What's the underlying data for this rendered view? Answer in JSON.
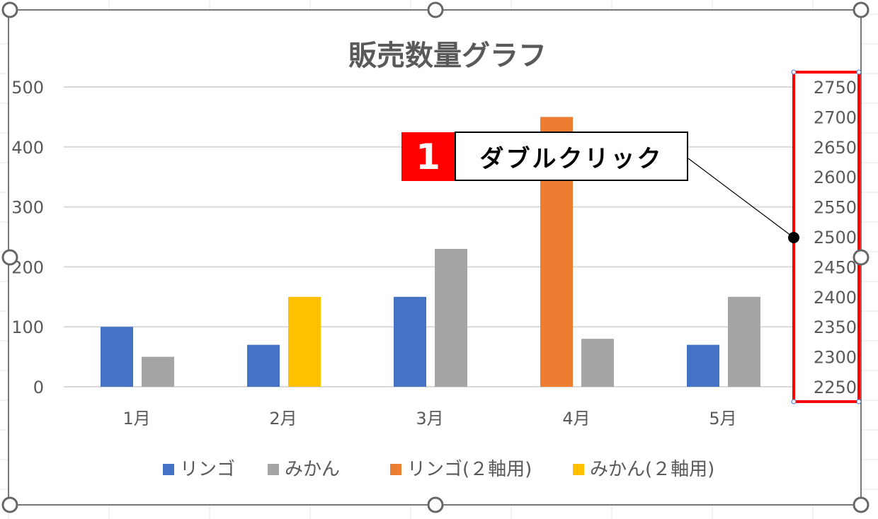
{
  "chart_data": {
    "type": "bar",
    "title": "販売数量グラフ",
    "categories": [
      "1月",
      "2月",
      "3月",
      "4月",
      "5月"
    ],
    "series": [
      {
        "name": "リンゴ",
        "axis": "primary",
        "slot": 0,
        "color": "#4472c4",
        "values": [
          100,
          70,
          150,
          null,
          70
        ]
      },
      {
        "name": "みかん",
        "axis": "primary",
        "slot": 1,
        "color": "#a5a5a5",
        "values": [
          50,
          null,
          230,
          80,
          150
        ]
      },
      {
        "name": "リンゴ(２軸用)",
        "axis": "secondary",
        "slot": 0,
        "color": "#ed7d31",
        "values": [
          null,
          null,
          null,
          2700,
          null
        ]
      },
      {
        "name": "みかん(２軸用)",
        "axis": "secondary",
        "slot": 1,
        "color": "#ffc000",
        "values": [
          null,
          2400,
          null,
          null,
          null
        ]
      }
    ],
    "y_primary": {
      "range": [
        0,
        500
      ],
      "ticks": [
        "0",
        "100",
        "200",
        "300",
        "400",
        "500"
      ]
    },
    "y_secondary": {
      "range": [
        2250,
        2750
      ],
      "ticks": [
        "2250",
        "2300",
        "2350",
        "2400",
        "2450",
        "2500",
        "2550",
        "2600",
        "2650",
        "2700",
        "2750"
      ]
    },
    "grid": true,
    "legend": "bottom"
  },
  "annotation": {
    "step": "1",
    "label": "ダブルクリック",
    "highlight_color": "#ff0000"
  }
}
